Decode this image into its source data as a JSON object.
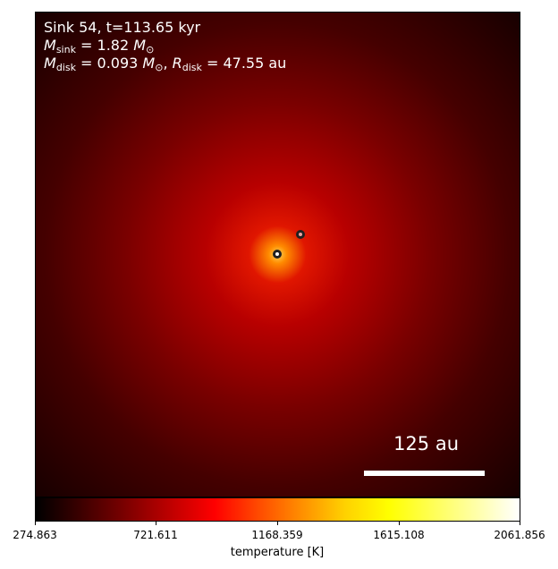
{
  "annotation": {
    "line1": "Sink 54, t=113.65 kyr",
    "line2": {
      "symbol": "M",
      "subscript": "sink",
      "equals": " = 1.82 ",
      "unit_symbol": "M",
      "unit_subscript": "⊙"
    },
    "line3": {
      "mass_symbol": "M",
      "mass_subscript": "disk",
      "mass_equals": " = 0.093 ",
      "mass_unit_symbol": "M",
      "mass_unit_subscript": "⊙",
      "separator": ", ",
      "radius_symbol": "R",
      "radius_subscript": "disk",
      "radius_equals": " = 47.55 au"
    }
  },
  "scale_bar": {
    "label": "125 au"
  },
  "colorbar": {
    "label": "temperature [K]",
    "ticks": [
      "274.863",
      "721.611",
      "1168.359",
      "1615.108",
      "2061.856"
    ],
    "colormap": "hot",
    "colors": [
      "#000000",
      "#ff0000",
      "#ffff00",
      "#ffffff"
    ]
  },
  "markers": [
    {
      "name": "primary sink",
      "fill": "#ffffff"
    },
    {
      "name": "secondary sink",
      "fill": "#f0a0a0"
    }
  ]
}
